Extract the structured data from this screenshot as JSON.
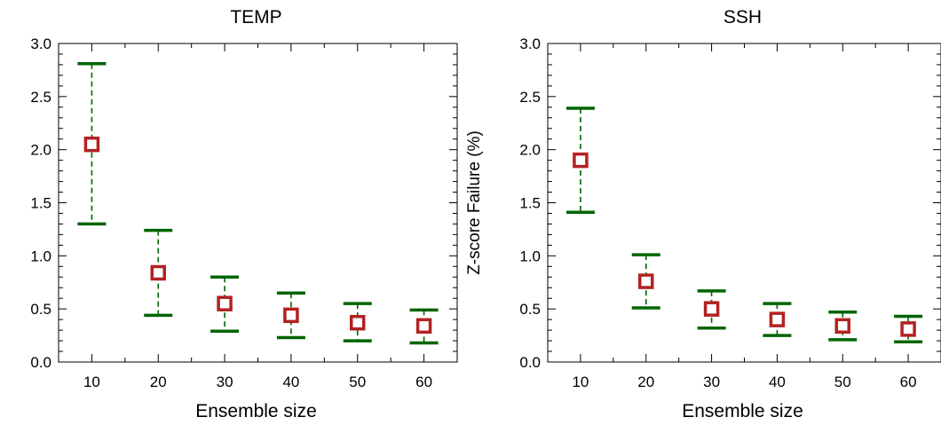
{
  "chart_data": [
    {
      "type": "errorbar",
      "title": "TEMP",
      "xlabel": "Ensemble size",
      "ylabel": "",
      "xlim": [
        5,
        65
      ],
      "ylim": [
        0,
        3
      ],
      "x_ticks": [
        "10",
        "20",
        "30",
        "40",
        "50",
        "60"
      ],
      "y_ticks": [
        "0.0",
        "0.5",
        "1.0",
        "1.5",
        "2.0",
        "2.5",
        "3.0"
      ],
      "grid": false,
      "points": [
        {
          "x": 10,
          "mean": 2.05,
          "low": 1.3,
          "high": 2.81
        },
        {
          "x": 20,
          "mean": 0.84,
          "low": 0.44,
          "high": 1.24
        },
        {
          "x": 30,
          "mean": 0.55,
          "low": 0.29,
          "high": 0.8
        },
        {
          "x": 40,
          "mean": 0.44,
          "low": 0.23,
          "high": 0.65
        },
        {
          "x": 50,
          "mean": 0.37,
          "low": 0.2,
          "high": 0.55
        },
        {
          "x": 60,
          "mean": 0.34,
          "low": 0.18,
          "high": 0.49
        }
      ],
      "colors": {
        "marker": "#b22222",
        "errorbar": "#006400"
      }
    },
    {
      "type": "errorbar",
      "title": "SSH",
      "xlabel": "Ensemble size",
      "ylabel": "Z-score Failure (%)",
      "xlim": [
        5,
        65
      ],
      "ylim": [
        0,
        3
      ],
      "x_ticks": [
        "10",
        "20",
        "30",
        "40",
        "50",
        "60"
      ],
      "y_ticks": [
        "0.0",
        "0.5",
        "1.0",
        "1.5",
        "2.0",
        "2.5",
        "3.0"
      ],
      "grid": false,
      "points": [
        {
          "x": 10,
          "mean": 1.9,
          "low": 1.41,
          "high": 2.39
        },
        {
          "x": 20,
          "mean": 0.76,
          "low": 0.51,
          "high": 1.01
        },
        {
          "x": 30,
          "mean": 0.5,
          "low": 0.32,
          "high": 0.67
        },
        {
          "x": 40,
          "mean": 0.4,
          "low": 0.25,
          "high": 0.55
        },
        {
          "x": 50,
          "mean": 0.34,
          "low": 0.21,
          "high": 0.47
        },
        {
          "x": 60,
          "mean": 0.31,
          "low": 0.19,
          "high": 0.43
        }
      ],
      "colors": {
        "marker": "#b22222",
        "errorbar": "#006400"
      }
    }
  ]
}
